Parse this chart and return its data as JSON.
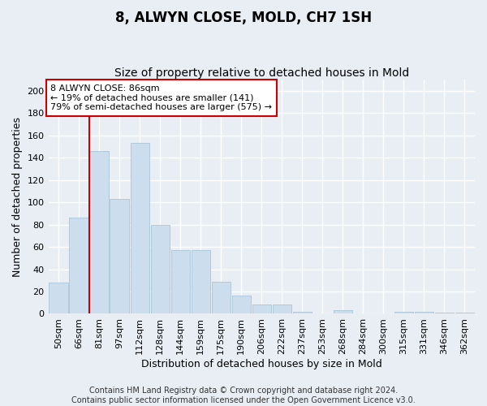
{
  "title": "8, ALWYN CLOSE, MOLD, CH7 1SH",
  "subtitle": "Size of property relative to detached houses in Mold",
  "xlabel": "Distribution of detached houses by size in Mold",
  "ylabel": "Number of detached properties",
  "categories": [
    "50sqm",
    "66sqm",
    "81sqm",
    "97sqm",
    "112sqm",
    "128sqm",
    "144sqm",
    "159sqm",
    "175sqm",
    "190sqm",
    "206sqm",
    "222sqm",
    "237sqm",
    "253sqm",
    "268sqm",
    "284sqm",
    "300sqm",
    "315sqm",
    "331sqm",
    "346sqm",
    "362sqm"
  ],
  "values": [
    28,
    86,
    146,
    103,
    153,
    80,
    57,
    57,
    29,
    16,
    8,
    8,
    2,
    0,
    3,
    0,
    0,
    2,
    2,
    1,
    1
  ],
  "bar_color": "#ccdded",
  "bar_edge_color": "#a8c4d8",
  "vline_x_index": 2,
  "vline_color": "#cc0000",
  "annotation_text": "8 ALWYN CLOSE: 86sqm\n← 19% of detached houses are smaller (141)\n79% of semi-detached houses are larger (575) →",
  "annotation_box_color": "#ffffff",
  "annotation_box_edge_color": "#cc0000",
  "footer_text": "Contains HM Land Registry data © Crown copyright and database right 2024.\nContains public sector information licensed under the Open Government Licence v3.0.",
  "ylim": [
    0,
    210
  ],
  "yticks": [
    0,
    20,
    40,
    60,
    80,
    100,
    120,
    140,
    160,
    180,
    200
  ],
  "background_color": "#e8eef4",
  "plot_bg_color": "#e8eef4",
  "grid_color": "#ffffff",
  "title_fontsize": 12,
  "subtitle_fontsize": 10,
  "axis_label_fontsize": 9,
  "tick_fontsize": 8,
  "annotation_fontsize": 8,
  "footer_fontsize": 7
}
